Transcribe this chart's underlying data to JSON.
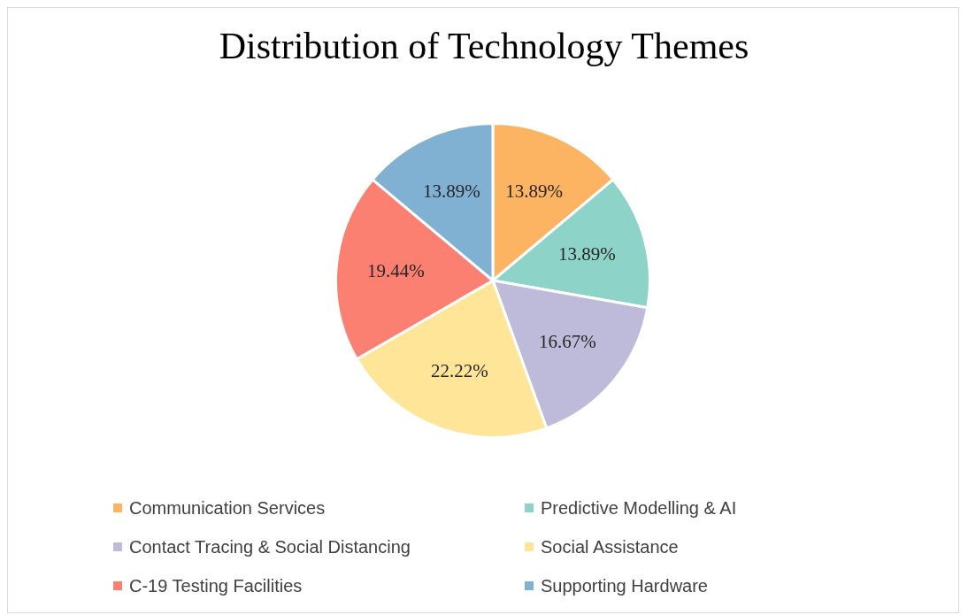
{
  "chart_data": {
    "type": "pie",
    "title": "Distribution of Technology Themes",
    "categories": [
      "Communication Services",
      "Predictive Modelling & AI",
      "Contact Tracing & Social Distancing",
      "Social Assistance",
      "C-19 Testing Facilities",
      "Supporting Hardware"
    ],
    "values": [
      13.89,
      13.89,
      16.67,
      22.22,
      19.44,
      13.89
    ],
    "value_labels": [
      "13.89%",
      "13.89%",
      "16.67%",
      "22.22%",
      "19.44%",
      "13.89%"
    ],
    "colors": [
      "#fdb462",
      "#8dd3c7",
      "#bebada",
      "#fee597",
      "#fb8072",
      "#80b1d3"
    ],
    "legend": "bottom"
  }
}
